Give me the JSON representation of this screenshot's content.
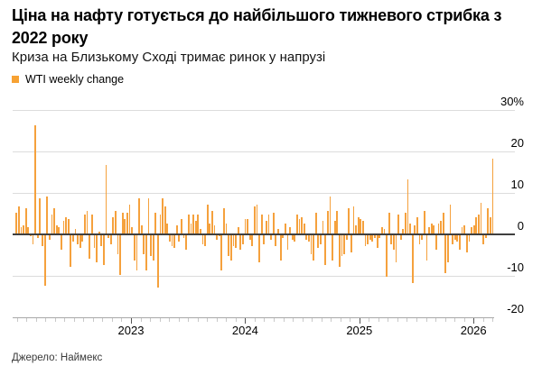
{
  "title": "Ціна на нафту готується до найбільшого тижневого стрибка з 2022 року",
  "subtitle": "Криза на Близькому Сході тримає ринок у напрузі",
  "legend": {
    "label": "WTI weekly change",
    "color": "#f7a233"
  },
  "source": "Джерело: Наймекс",
  "chart_data": {
    "type": "bar",
    "title": "Ціна на нафту готується до найбільшого тижневого стрибка з 2022 року",
    "subtitle": "Криза на Близькому Сході тримає ринок у напрузі",
    "series_name": "WTI weekly change",
    "unit": "%",
    "ylim": [
      -20,
      30
    ],
    "grid": "horizontal",
    "legend_position": "top-left",
    "y_axis_side": "right",
    "bar_color": "#f5a13d",
    "y_ticks": [
      {
        "value": 30,
        "label": "30%"
      },
      {
        "value": 20,
        "label": "20"
      },
      {
        "value": 10,
        "label": "10"
      },
      {
        "value": 0,
        "label": "0"
      },
      {
        "value": -10,
        "label": "-10"
      },
      {
        "value": -20,
        "label": "-20"
      }
    ],
    "x_ticks": [
      "2023",
      "2024",
      "2025",
      "2026"
    ],
    "x_description": "weekly bars from late 2021 through the 2026 tick; year ticks mark January of each year",
    "values": [
      5,
      6.5,
      1.5,
      2,
      6,
      1.5,
      -0.5,
      -2.5,
      26,
      -1,
      8.5,
      -3,
      -12.5,
      9,
      -1.5,
      4.5,
      6,
      2,
      1.5,
      -4,
      3,
      4,
      3.5,
      -8,
      -2,
      1,
      -2.5,
      -3.5,
      -2,
      4.5,
      5.5,
      -6,
      4.5,
      -3.5,
      -7,
      0.5,
      -3,
      -7.5,
      16.5,
      -1,
      -2.5,
      4,
      5.5,
      -5,
      -10,
      5,
      3.5,
      5,
      7,
      1.5,
      -6.5,
      -9,
      8.5,
      2,
      -5,
      -9,
      8.5,
      -5.5,
      -6.5,
      5,
      -13,
      4.5,
      8.5,
      6.5,
      2.5,
      -2,
      -3,
      -3.5,
      2,
      -2,
      3.5,
      -1,
      -4,
      4.5,
      2.5,
      4.5,
      3,
      4.5,
      1,
      -2.5,
      -3,
      7,
      2.5,
      5.5,
      2,
      -1.5,
      -0.5,
      -9,
      6,
      2.5,
      -5.5,
      -6.5,
      -3,
      -3.5,
      1.5,
      -4,
      -2.5,
      3.5,
      3.5,
      -1.5,
      -3,
      6.5,
      7,
      -7,
      4.5,
      -2.5,
      3,
      4.5,
      -1.5,
      5,
      -3,
      1,
      -6.5,
      -1,
      2.5,
      -4,
      1.5,
      -1.5,
      -2,
      4.5,
      3.5,
      4,
      2.5,
      -1.5,
      -2,
      -5,
      -6.5,
      5,
      -3.5,
      -2.5,
      3,
      -7.5,
      5.5,
      9,
      -6.5,
      3,
      5.5,
      -8,
      -5.5,
      -5,
      -1.5,
      6,
      -4.5,
      6.5,
      2,
      4,
      3.5,
      3,
      -3,
      -2.5,
      -1.5,
      -2,
      -1,
      -3.5,
      -1,
      1.5,
      1,
      -10.5,
      5,
      -2.5,
      -4,
      -7,
      4.5,
      -1.5,
      1,
      5,
      13,
      2.5,
      -12,
      2,
      4,
      -2.5,
      -1.5,
      5.5,
      -6.5,
      1.5,
      2.5,
      2,
      -4,
      2.5,
      3,
      5,
      -9.5,
      -7,
      7,
      -2.5,
      -1.5,
      -2,
      -4,
      1.5,
      2,
      -4.5,
      -2,
      1.5,
      2,
      4,
      4.5,
      7.5,
      -2.5,
      -1,
      6,
      4,
      18
    ]
  }
}
